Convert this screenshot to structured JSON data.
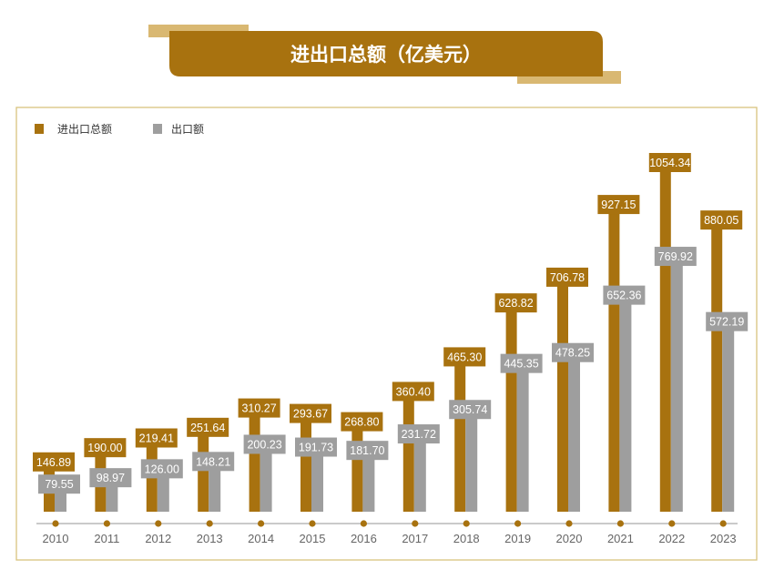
{
  "banner": {
    "title": "进出口总额（亿美元）"
  },
  "colors": {
    "total": "#A8720F",
    "export": "#9E9E9E",
    "frame": "#D8C27E",
    "axis": "#B9B9B9",
    "banner_light": "#D9B872"
  },
  "chart_data": {
    "type": "bar",
    "categories": [
      "2010",
      "2011",
      "2012",
      "2013",
      "2014",
      "2015",
      "2016",
      "2017",
      "2018",
      "2019",
      "2020",
      "2021",
      "2022",
      "2023"
    ],
    "series": [
      {
        "name": "进出口总额",
        "values": [
          146.89,
          190.0,
          219.41,
          251.64,
          310.27,
          293.67,
          268.8,
          360.4,
          465.3,
          628.82,
          706.78,
          927.15,
          1054.34,
          880.05
        ]
      },
      {
        "name": "出口额",
        "values": [
          79.55,
          98.97,
          126.0,
          148.21,
          200.23,
          191.73,
          181.7,
          231.72,
          305.74,
          445.35,
          478.25,
          652.36,
          769.92,
          572.19
        ]
      }
    ],
    "labels": [
      [
        "146.89",
        "190.00",
        "219.41",
        "251.64",
        "310.27",
        "293.67",
        "268.80",
        "360.40",
        "465.30",
        "628.82",
        "706.78",
        "927.15",
        "1054.34",
        "880.05"
      ],
      [
        "79.55",
        "98.97",
        "126.00",
        "148.21",
        "200.23",
        "191.73",
        "181.70",
        "231.72",
        "305.74",
        "445.35",
        "478.25",
        "652.36",
        "769.92",
        "572.19"
      ]
    ],
    "legend_position": "top-left",
    "grid": false
  }
}
